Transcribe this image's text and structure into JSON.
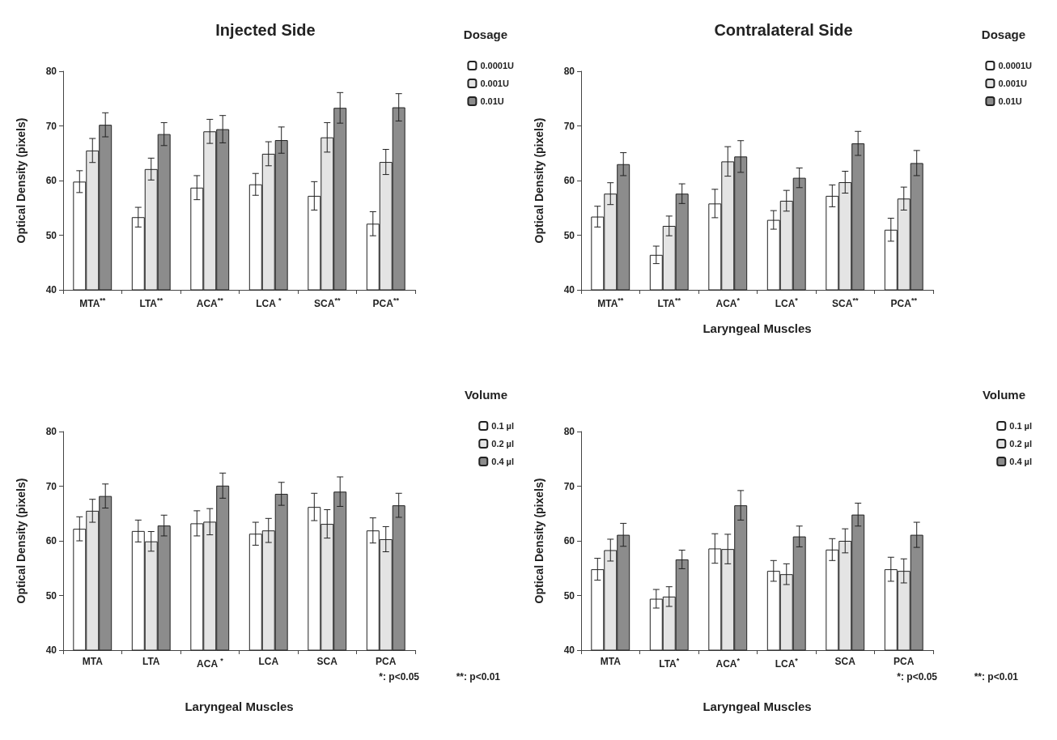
{
  "chart_data": [
    {
      "type": "bar",
      "title": "Injected Side",
      "ylabel": "Optical Density (pixels)",
      "legend_title": "Dosage",
      "legend": "top right",
      "grid": false,
      "categories": [
        "MTA$^{**}$",
        "LTA$^{**}$",
        "ACA$^{**}$",
        "LCA $^{*}$",
        "SCA$^{**}$",
        "PCA$^{**}$"
      ],
      "ylim": [
        40,
        80
      ],
      "yticks": [
        40,
        50,
        60,
        70,
        80
      ],
      "series": [
        {
          "name": "0.0001U",
          "color": "#ffffff",
          "values": [
            59.8,
            53.3,
            58.7,
            59.3,
            57.2,
            52.1
          ],
          "errors": [
            2.0,
            1.8,
            2.2,
            2.0,
            2.6,
            2.2
          ]
        },
        {
          "name": "0.001U",
          "color": "#e4e4e4",
          "values": [
            65.5,
            62.1,
            69.0,
            64.9,
            67.9,
            63.4
          ],
          "errors": [
            2.2,
            2.0,
            2.2,
            2.2,
            2.7,
            2.3
          ]
        },
        {
          "name": "0.01U",
          "color": "#8c8c8c",
          "values": [
            70.2,
            68.5,
            69.4,
            67.4,
            73.3,
            73.4
          ],
          "errors": [
            2.2,
            2.1,
            2.5,
            2.4,
            2.8,
            2.5
          ]
        }
      ]
    },
    {
      "type": "bar",
      "title": "Contralateral Side",
      "xlabel": "Laryngeal Muscles",
      "ylabel": "Optical Density (pixels)",
      "legend_title": "Dosage",
      "legend": "top right",
      "grid": false,
      "categories": [
        "MTA$^{**}$",
        "LTA$^{**}$",
        "ACA$^{*}$",
        "LCA$^{*}$",
        "SCA$^{**}$",
        "PCA$^{**}$"
      ],
      "ylim": [
        40,
        80
      ],
      "yticks": [
        40,
        50,
        60,
        70,
        80
      ],
      "series": [
        {
          "name": "0.0001U",
          "color": "#ffffff",
          "values": [
            53.4,
            46.4,
            55.8,
            52.8,
            57.2,
            51.0
          ],
          "errors": [
            1.9,
            1.6,
            2.6,
            1.7,
            2.0,
            2.1
          ]
        },
        {
          "name": "0.001U",
          "color": "#e4e4e4",
          "values": [
            57.6,
            51.7,
            63.5,
            56.3,
            59.7,
            56.7
          ],
          "errors": [
            2.0,
            1.8,
            2.7,
            1.9,
            2.0,
            2.1
          ]
        },
        {
          "name": "0.01U",
          "color": "#8c8c8c",
          "values": [
            63.0,
            57.6,
            64.4,
            60.5,
            66.8,
            63.2
          ],
          "errors": [
            2.1,
            1.8,
            2.9,
            1.8,
            2.2,
            2.3
          ]
        }
      ]
    },
    {
      "type": "bar",
      "xlabel": "Laryngeal Muscles",
      "ylabel": "Optical Density (pixels)",
      "legend_title": "Volume",
      "legend": "top right",
      "grid": false,
      "categories": [
        "MTA",
        "LTA",
        "ACA $^{*}$",
        "LCA",
        "SCA",
        "PCA"
      ],
      "ylim": [
        40,
        80
      ],
      "yticks": [
        40,
        50,
        60,
        70,
        80
      ],
      "annotations": [
        "*: p<0.05",
        "**: p<0.01"
      ],
      "series": [
        {
          "name": "0.1 µl",
          "color": "#ffffff",
          "values": [
            62.2,
            61.8,
            63.2,
            61.3,
            66.2,
            61.9
          ],
          "errors": [
            2.2,
            2.0,
            2.3,
            2.1,
            2.5,
            2.3
          ]
        },
        {
          "name": "0.2 µl",
          "color": "#e4e4e4",
          "values": [
            65.5,
            59.9,
            63.5,
            61.9,
            63.1,
            60.3
          ],
          "errors": [
            2.1,
            1.8,
            2.4,
            2.2,
            2.6,
            2.3
          ]
        },
        {
          "name": "0.4 µl",
          "color": "#8c8c8c",
          "values": [
            68.2,
            62.8,
            70.1,
            68.6,
            69.0,
            66.5
          ],
          "errors": [
            2.2,
            1.9,
            2.3,
            2.1,
            2.7,
            2.2
          ]
        }
      ]
    },
    {
      "type": "bar",
      "xlabel": "Laryngeal Muscles",
      "ylabel": "Optical Density (pixels)",
      "legend_title": "Volume",
      "legend": "top right",
      "grid": false,
      "categories": [
        "MTA",
        "LTA$^{*}$",
        "ACA$^{*}$",
        "LCA$^{*}$",
        "SCA",
        "PCA"
      ],
      "ylim": [
        40,
        80
      ],
      "yticks": [
        40,
        50,
        60,
        70,
        80
      ],
      "annotations": [
        "*: p<0.05",
        "**: p<0.01"
      ],
      "series": [
        {
          "name": "0.1 µl",
          "color": "#ffffff",
          "values": [
            54.8,
            49.4,
            58.6,
            54.5,
            58.4,
            54.8
          ],
          "errors": [
            2.0,
            1.7,
            2.7,
            1.9,
            2.0,
            2.2
          ]
        },
        {
          "name": "0.2 µl",
          "color": "#e4e4e4",
          "values": [
            58.3,
            49.8,
            58.5,
            53.9,
            60.0,
            54.5
          ],
          "errors": [
            2.0,
            1.8,
            2.7,
            1.9,
            2.2,
            2.2
          ]
        },
        {
          "name": "0.4 µl",
          "color": "#8c8c8c",
          "values": [
            61.1,
            56.6,
            66.5,
            60.8,
            64.8,
            61.1
          ],
          "errors": [
            2.1,
            1.7,
            2.7,
            1.9,
            2.1,
            2.3
          ]
        }
      ]
    }
  ]
}
